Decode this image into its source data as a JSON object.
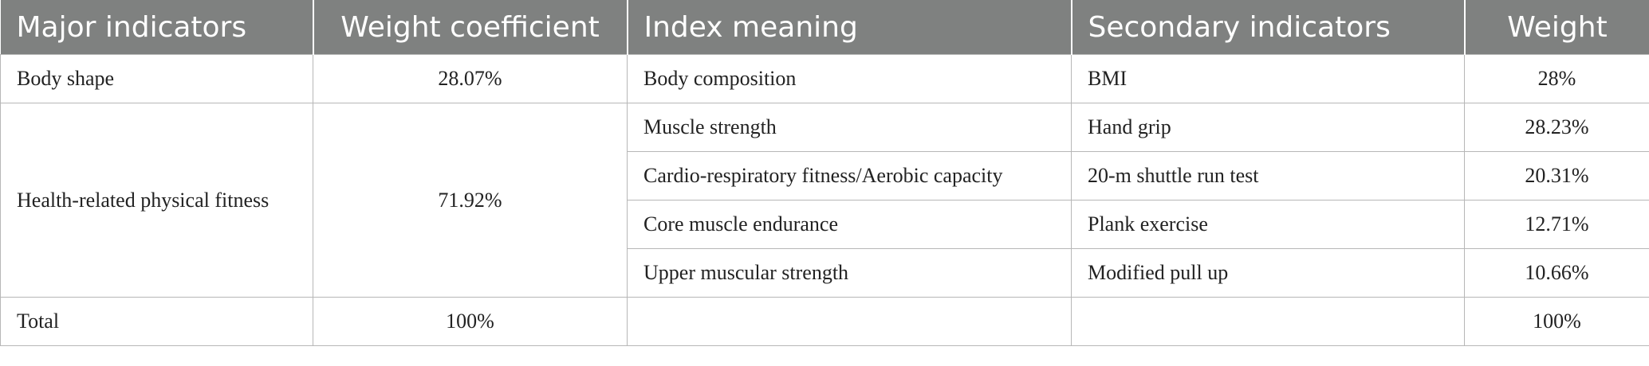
{
  "headers": [
    "Major indicators",
    "Weight coefficient",
    "Index meaning",
    "Secondary indicators",
    "Weight"
  ],
  "rows": {
    "body_shape": {
      "major": "Body shape",
      "coefficient": "28.07%",
      "meaning": "Body composition",
      "secondary": "BMI",
      "weight": "28%"
    },
    "health": {
      "major": "Health-related physical fitness",
      "coefficient": "71.92%",
      "subrows": [
        {
          "meaning": "Muscle strength",
          "secondary": "Hand grip",
          "weight": "28.23%"
        },
        {
          "meaning": "Cardio-respiratory fitness/Aerobic capacity",
          "secondary": "20-m shuttle run test",
          "weight": "20.31%"
        },
        {
          "meaning": "Core muscle endurance",
          "secondary": "Plank exercise",
          "weight": "12.71%"
        },
        {
          "meaning": "Upper muscular strength",
          "secondary": "Modified pull up",
          "weight": "10.66%"
        }
      ]
    },
    "total": {
      "major": "Total",
      "coefficient": "100%",
      "meaning": "",
      "secondary": "",
      "weight": "100%"
    }
  }
}
